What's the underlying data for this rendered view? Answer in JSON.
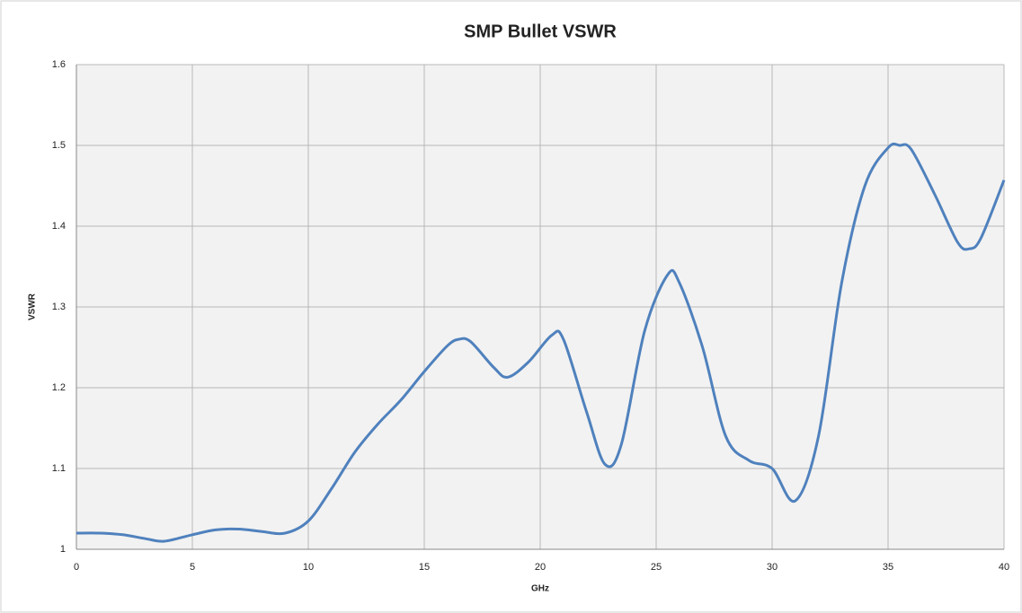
{
  "chart_data": {
    "type": "line",
    "title": "SMP Bullet VSWR",
    "x_label": "GHz",
    "y_label": "VSWR",
    "x": [
      0,
      1,
      2,
      3,
      3.8,
      5,
      6,
      7,
      8,
      9,
      10,
      11,
      12,
      13,
      14,
      15,
      16,
      16.5,
      17,
      18,
      18.6,
      19.5,
      20.5,
      21,
      22,
      22.8,
      23.5,
      24.5,
      25.5,
      26,
      27,
      28,
      29,
      30,
      31,
      32,
      33,
      34,
      35,
      35.5,
      36,
      37,
      38,
      38.5,
      39,
      40
    ],
    "series": [
      {
        "name": "VSWR",
        "color": "#4f81bd",
        "values": [
          1.02,
          1.02,
          1.018,
          1.013,
          1.01,
          1.018,
          1.024,
          1.025,
          1.022,
          1.02,
          1.035,
          1.075,
          1.12,
          1.155,
          1.185,
          1.22,
          1.252,
          1.26,
          1.257,
          1.225,
          1.213,
          1.232,
          1.265,
          1.26,
          1.17,
          1.105,
          1.13,
          1.27,
          1.34,
          1.33,
          1.25,
          1.14,
          1.11,
          1.1,
          1.06,
          1.14,
          1.33,
          1.45,
          1.497,
          1.5,
          1.495,
          1.44,
          1.38,
          1.372,
          1.385,
          1.457
        ]
      }
    ],
    "xlim": [
      0,
      40
    ],
    "xticks": [
      0,
      5,
      10,
      15,
      20,
      25,
      30,
      35,
      40
    ],
    "ylim": [
      1,
      1.6
    ],
    "yticks": [
      1,
      1.1,
      1.2,
      1.3,
      1.4,
      1.5,
      1.6
    ],
    "grid": true
  }
}
